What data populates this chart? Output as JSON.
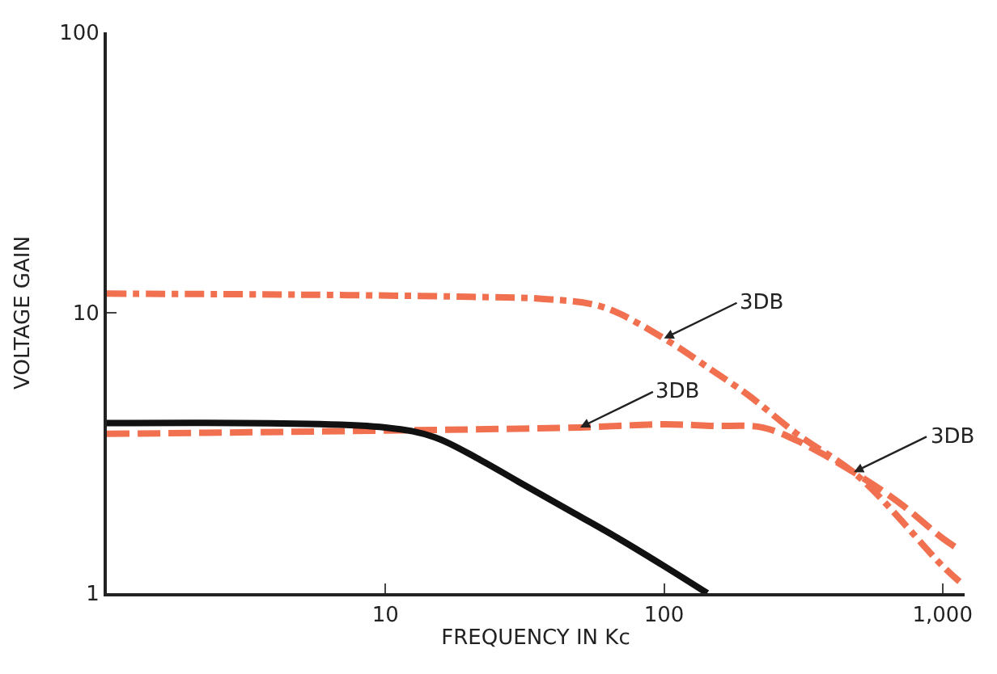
{
  "chart_data": {
    "type": "line",
    "xlabel": "FREQUENCY IN Kc",
    "ylabel": "VOLTAGE GAIN",
    "log": "xy",
    "xlim": [
      1,
      1200
    ],
    "ylim": [
      1,
      100
    ],
    "xticks": [
      10,
      100,
      {
        "value": 1000,
        "label": "1,000"
      }
    ],
    "yticks": [
      1,
      10,
      100
    ],
    "series": [
      {
        "color": "#f07050",
        "line_style": "dashdot",
        "x": [
          1,
          5,
          20,
          37,
          60,
          100,
          150,
          200,
          300,
          500,
          1000,
          1150
        ],
        "values": [
          11.7,
          11.6,
          11.4,
          11.2,
          10.5,
          8.1,
          6.2,
          5.1,
          3.7,
          2.6,
          1.25,
          1.1
        ]
      },
      {
        "color": "#f07050",
        "line_style": "dashed",
        "x": [
          1,
          10,
          50,
          100,
          150,
          225,
          300,
          480,
          700,
          1000,
          1150
        ],
        "values": [
          3.7,
          3.8,
          3.9,
          4.0,
          3.95,
          3.9,
          3.5,
          2.7,
          2.1,
          1.57,
          1.43
        ]
      },
      {
        "color": "#111111",
        "line_style": "solid",
        "x": [
          1,
          10,
          15,
          22,
          30,
          48,
          70,
          100,
          143
        ],
        "values": [
          4.04,
          3.9,
          3.6,
          2.98,
          2.5,
          1.92,
          1.55,
          1.25,
          1.0
        ]
      }
    ],
    "annotations": [
      {
        "text": "3DB",
        "x": 100,
        "y": 8.1
      },
      {
        "text": "3DB",
        "x": 50,
        "y": 3.9
      },
      {
        "text": "3DB",
        "x": 480,
        "y": 2.7
      }
    ]
  }
}
